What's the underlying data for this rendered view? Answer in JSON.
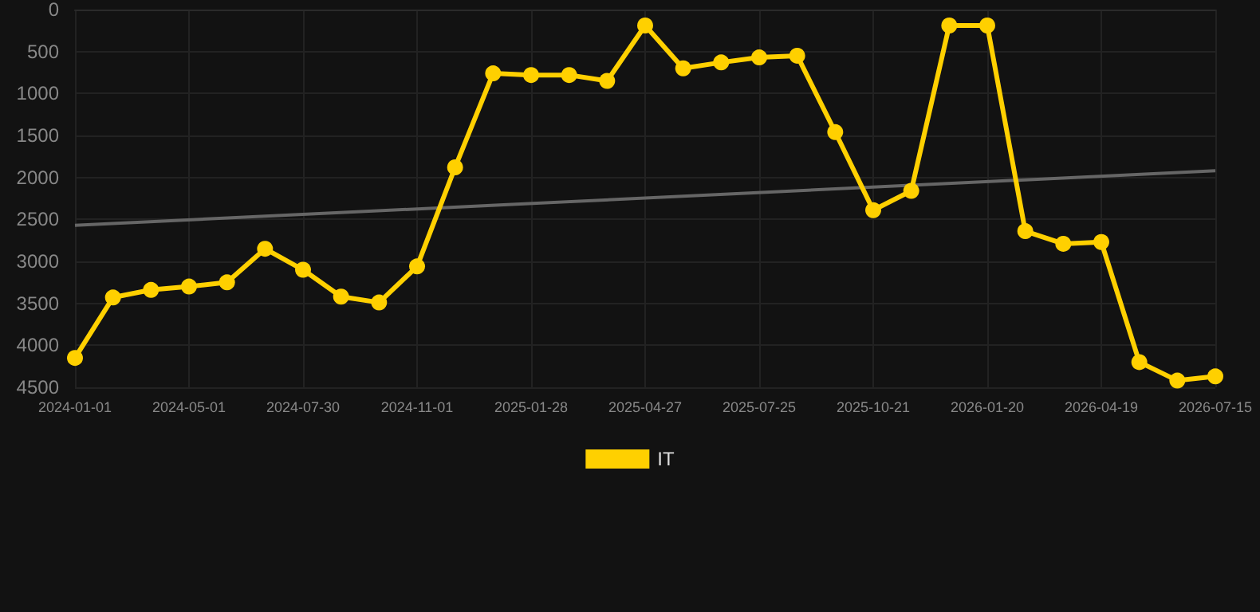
{
  "chart_data": {
    "type": "line",
    "categories": [
      "2024-01-01",
      null,
      null,
      "2024-05-01",
      null,
      null,
      "2024-07-30",
      null,
      null,
      "2024-11-01",
      null,
      null,
      "2025-01-28",
      null,
      null,
      "2025-04-27",
      null,
      null,
      "2025-07-25",
      null,
      null,
      "2025-10-21",
      null,
      null,
      "2026-01-20",
      null,
      null,
      "2026-04-19",
      null,
      null,
      "2026-07-15"
    ],
    "series": [
      {
        "name": "IT",
        "color": "#ffd000",
        "marker": "circle",
        "values": [
          4150,
          3430,
          3340,
          3300,
          3250,
          2850,
          3100,
          3420,
          3490,
          3060,
          1880,
          760,
          780,
          780,
          850,
          190,
          700,
          630,
          570,
          550,
          1460,
          2390,
          2160,
          190,
          190,
          2640,
          2790,
          2770,
          4200,
          4420,
          4370
        ]
      },
      {
        "type": "line",
        "color": "#666666",
        "marker": "none",
        "values": [
          2570,
          null,
          null,
          null,
          null,
          null,
          null,
          null,
          null,
          null,
          null,
          null,
          null,
          null,
          null,
          null,
          null,
          null,
          null,
          null,
          null,
          null,
          null,
          null,
          null,
          null,
          null,
          null,
          null,
          null,
          1920
        ]
      }
    ],
    "ylim": [
      4500,
      0
    ],
    "yticks": [
      0,
      500,
      1000,
      1500,
      2000,
      2500,
      3000,
      3500,
      4000,
      4500
    ],
    "grid": true,
    "legend": "bottom"
  }
}
